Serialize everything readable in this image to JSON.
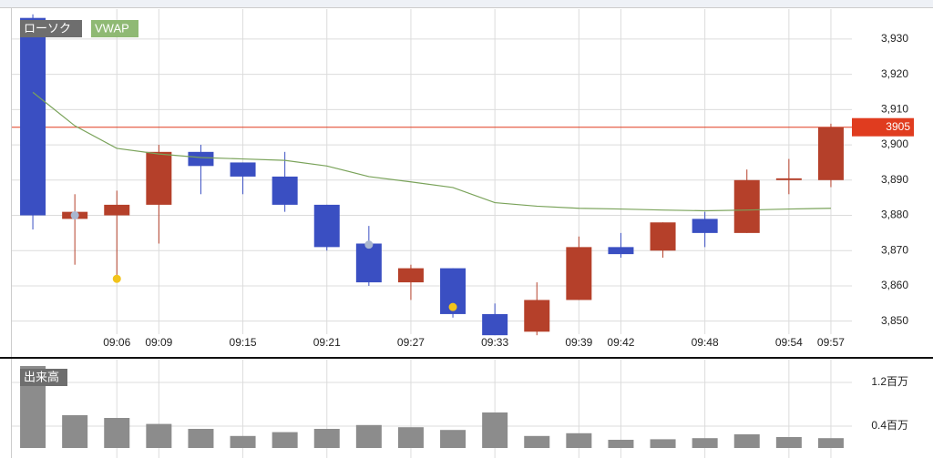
{
  "chart_data": {
    "type": "candlestick",
    "legend": [
      "ローソク",
      "VWAP"
    ],
    "categories": [
      null,
      null,
      "09:06",
      "09:09",
      null,
      "09:15",
      null,
      "09:21",
      null,
      "09:27",
      null,
      "09:33",
      null,
      "09:39",
      "09:42",
      null,
      "09:48",
      null,
      "09:54",
      "09:57"
    ],
    "open": [
      3936,
      3879,
      3880,
      3883,
      3898,
      3895,
      3891,
      3883,
      3872,
      3861,
      3865,
      3852,
      3847,
      3856,
      3871,
      3870,
      3879,
      3875,
      3890,
      3890
    ],
    "high": [
      3937,
      3886,
      3887,
      3900,
      3900,
      3895,
      3898,
      3883,
      3877,
      3866,
      3865,
      3855,
      3861,
      3874,
      3875,
      3878,
      3881,
      3893,
      3896,
      3906
    ],
    "low": [
      3876,
      3866,
      3862,
      3872,
      3886,
      3886,
      3881,
      3870,
      3860,
      3856,
      3851,
      3846,
      3846,
      3856,
      3868,
      3868,
      3871,
      3875,
      3886,
      3888
    ],
    "close": [
      3880,
      3881,
      3883,
      3898,
      3894,
      3891,
      3883,
      3871,
      3861,
      3865,
      3852,
      3846,
      3856,
      3871,
      3869,
      3878,
      3875,
      3890,
      3890.5,
      3905
    ],
    "up_color": "#b5402a",
    "down_color": "#3a4fc2",
    "vwap": {
      "name": "VWAP",
      "color": "#7aa35a",
      "values": [
        3914.9,
        3905.4,
        3899,
        3897.4,
        3896.4,
        3896,
        3895.6,
        3894,
        3891,
        3889.5,
        3887.9,
        3883.6,
        3882.6,
        3882,
        3881.8,
        3881.5,
        3881.3,
        3881.5,
        3881.8,
        3882
      ]
    },
    "markers": [
      {
        "index": 1,
        "value": 3880,
        "color": "#a9b6cf"
      },
      {
        "index": 2,
        "value": 3862,
        "color": "#f2c31b"
      },
      {
        "index": 8,
        "value": 3871.7,
        "color": "#a9b6cf"
      },
      {
        "index": 10,
        "value": 3854,
        "color": "#f2c31b"
      }
    ],
    "current_price": {
      "value": 3905,
      "label": "3905",
      "color": "#e03c1f"
    },
    "ylim": [
      3846.3,
      3938.5
    ],
    "yticks": [
      {
        "value": 3850,
        "label": "3,850"
      },
      {
        "value": 3860,
        "label": "3,860"
      },
      {
        "value": 3870,
        "label": "3,870"
      },
      {
        "value": 3880,
        "label": "3,880"
      },
      {
        "value": 3890,
        "label": "3,890"
      },
      {
        "value": 3900,
        "label": "3,900"
      },
      {
        "value": 3910,
        "label": "3,910"
      },
      {
        "value": 3920,
        "label": "3,920"
      },
      {
        "value": 3930,
        "label": "3,930"
      }
    ],
    "grid": true,
    "volume": {
      "title": "出来高",
      "color": "#8c8c8c",
      "values": [
        1.5,
        0.6,
        0.55,
        0.44,
        0.35,
        0.22,
        0.29,
        0.35,
        0.42,
        0.38,
        0.33,
        0.65,
        0.22,
        0.27,
        0.15,
        0.16,
        0.18,
        0.25,
        0.2,
        0.18
      ],
      "ylim": [
        0,
        1.6
      ],
      "yticks": [
        {
          "value": 0.4,
          "label": "0.4百万"
        },
        {
          "value": 1.2,
          "label": "1.2百万"
        }
      ]
    }
  }
}
